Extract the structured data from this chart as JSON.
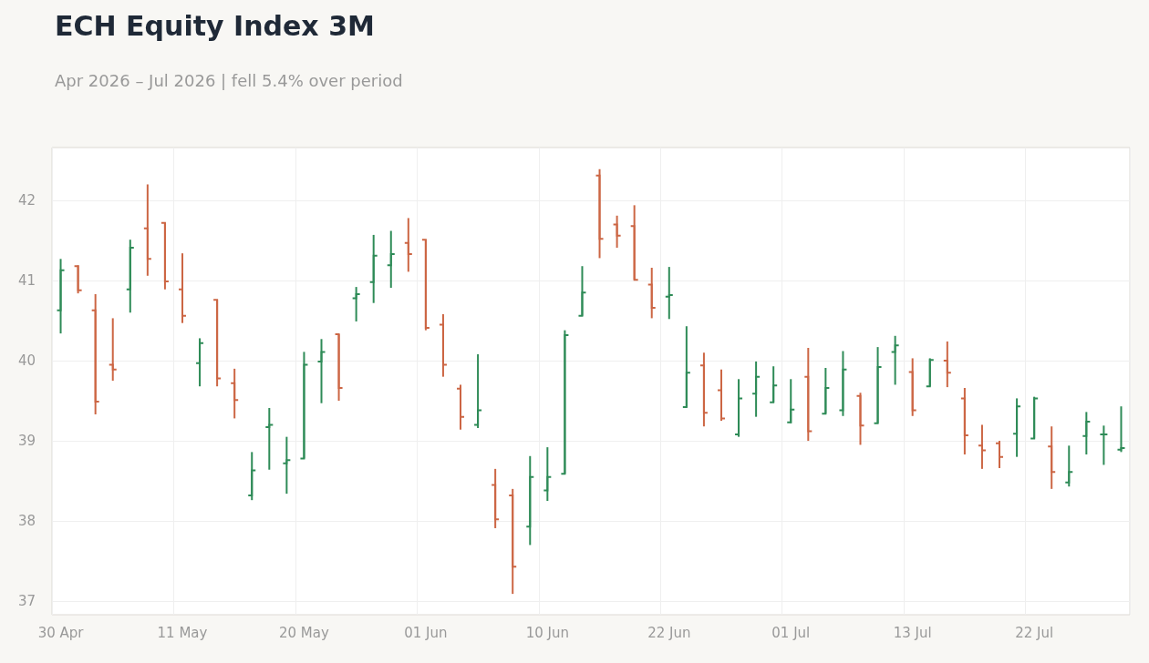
{
  "chart_data": {
    "type": "candlestick",
    "title": "ECH Equity Index 3M",
    "subtitle": "Apr 2026 – Jul 2026 | fell 5.4% over period",
    "categories": [
      "30 Apr",
      null,
      null,
      null,
      null,
      null,
      null,
      "11 May",
      null,
      null,
      null,
      null,
      null,
      null,
      "20 May",
      null,
      null,
      null,
      null,
      null,
      null,
      "01 Jun",
      null,
      null,
      null,
      null,
      null,
      null,
      "10 Jun",
      null,
      null,
      null,
      null,
      null,
      null,
      "22 Jun",
      null,
      null,
      null,
      null,
      null,
      null,
      "01 Jul",
      null,
      null,
      null,
      null,
      null,
      null,
      "13 Jul",
      null,
      null,
      null,
      null,
      null,
      null,
      "22 Jul",
      null,
      null,
      null,
      null,
      null
    ],
    "ohlc": [
      [
        40.63,
        41.27,
        40.34,
        41.13
      ],
      [
        41.18,
        41.19,
        40.84,
        40.88
      ],
      [
        40.63,
        40.83,
        39.33,
        39.49
      ],
      [
        39.95,
        40.53,
        39.75,
        39.89
      ],
      [
        40.89,
        41.51,
        40.6,
        41.41
      ],
      [
        41.65,
        42.2,
        41.06,
        41.27
      ],
      [
        41.72,
        41.72,
        40.89,
        40.99
      ],
      [
        40.89,
        41.34,
        40.47,
        40.56
      ],
      [
        39.97,
        40.28,
        39.68,
        40.22
      ],
      [
        40.76,
        40.76,
        39.68,
        39.78
      ],
      [
        39.72,
        39.9,
        39.28,
        39.51
      ],
      [
        38.32,
        38.86,
        38.26,
        38.63
      ],
      [
        39.17,
        39.41,
        38.64,
        39.2
      ],
      [
        38.72,
        39.05,
        38.34,
        38.76
      ],
      [
        38.78,
        40.11,
        38.78,
        39.95
      ],
      [
        39.99,
        40.27,
        39.47,
        40.11
      ],
      [
        40.33,
        40.33,
        39.5,
        39.66
      ],
      [
        40.78,
        40.92,
        40.49,
        40.83
      ],
      [
        40.98,
        41.57,
        40.72,
        41.31
      ],
      [
        41.19,
        41.62,
        40.91,
        41.33
      ],
      [
        41.47,
        41.78,
        41.11,
        41.33
      ],
      [
        41.51,
        41.51,
        40.38,
        40.41
      ],
      [
        40.45,
        40.58,
        39.8,
        39.95
      ],
      [
        39.65,
        39.7,
        39.14,
        39.3
      ],
      [
        39.2,
        40.08,
        39.16,
        39.38
      ],
      [
        38.45,
        38.65,
        37.91,
        38.02
      ],
      [
        38.32,
        38.4,
        37.09,
        37.43
      ],
      [
        37.93,
        38.81,
        37.7,
        38.55
      ],
      [
        38.38,
        38.92,
        38.25,
        38.55
      ],
      [
        38.59,
        40.38,
        38.59,
        40.32
      ],
      [
        40.56,
        41.18,
        40.56,
        40.85
      ],
      [
        42.31,
        42.39,
        41.28,
        41.52
      ],
      [
        41.7,
        41.81,
        41.41,
        41.56
      ],
      [
        41.68,
        41.94,
        41.01,
        41.01
      ],
      [
        40.95,
        41.16,
        40.53,
        40.66
      ],
      [
        40.8,
        41.17,
        40.52,
        40.82
      ],
      [
        39.42,
        40.43,
        39.42,
        39.85
      ],
      [
        39.94,
        40.1,
        39.18,
        39.35
      ],
      [
        39.63,
        39.89,
        39.25,
        39.28
      ],
      [
        39.08,
        39.77,
        39.05,
        39.53
      ],
      [
        39.59,
        39.99,
        39.3,
        39.8
      ],
      [
        39.48,
        39.93,
        39.48,
        39.69
      ],
      [
        39.23,
        39.77,
        39.22,
        39.39
      ],
      [
        39.8,
        40.16,
        39.0,
        39.12
      ],
      [
        39.34,
        39.91,
        39.34,
        39.66
      ],
      [
        39.38,
        40.12,
        39.31,
        39.89
      ],
      [
        39.56,
        39.6,
        38.95,
        39.19
      ],
      [
        39.22,
        40.17,
        39.22,
        39.92
      ],
      [
        40.11,
        40.31,
        39.7,
        40.19
      ],
      [
        39.86,
        40.03,
        39.31,
        39.38
      ],
      [
        39.68,
        40.03,
        39.68,
        40.01
      ],
      [
        40.0,
        40.24,
        39.67,
        39.85
      ],
      [
        39.53,
        39.66,
        38.83,
        39.07
      ],
      [
        38.94,
        39.2,
        38.65,
        38.88
      ],
      [
        38.97,
        39.0,
        38.66,
        38.8
      ],
      [
        39.09,
        39.53,
        38.8,
        39.43
      ],
      [
        39.03,
        39.55,
        39.03,
        39.53
      ],
      [
        38.93,
        39.18,
        38.4,
        38.61
      ],
      [
        38.48,
        38.94,
        38.43,
        38.61
      ],
      [
        39.06,
        39.36,
        38.83,
        39.24
      ],
      [
        39.08,
        39.19,
        38.7,
        39.08
      ],
      [
        38.89,
        39.43,
        38.86,
        38.91
      ]
    ],
    "colors": [
      "#2e8b57",
      "#cc6644",
      "#cc6644",
      "#cc6644",
      "#2e8b57",
      "#cc6644",
      "#cc6644",
      "#cc6644",
      "#2e8b57",
      "#cc6644",
      "#cc6644",
      "#2e8b57",
      "#2e8b57",
      "#2e8b57",
      "#2e8b57",
      "#2e8b57",
      "#cc6644",
      "#2e8b57",
      "#2e8b57",
      "#2e8b57",
      "#cc6644",
      "#cc6644",
      "#cc6644",
      "#cc6644",
      "#2e8b57",
      "#cc6644",
      "#cc6644",
      "#2e8b57",
      "#2e8b57",
      "#2e8b57",
      "#2e8b57",
      "#cc6644",
      "#cc6644",
      "#cc6644",
      "#cc6644",
      "#2e8b57",
      "#2e8b57",
      "#cc6644",
      "#cc6644",
      "#2e8b57",
      "#2e8b57",
      "#2e8b57",
      "#2e8b57",
      "#cc6644",
      "#2e8b57",
      "#2e8b57",
      "#cc6644",
      "#2e8b57",
      "#2e8b57",
      "#cc6644",
      "#2e8b57",
      "#cc6644",
      "#cc6644",
      "#cc6644",
      "#cc6644",
      "#2e8b57",
      "#2e8b57",
      "#cc6644",
      "#2e8b57",
      "#2e8b57",
      "#2e8b57",
      "#2e8b57"
    ],
    "ylim": [
      36.83,
      42.66
    ],
    "yticks": [
      37,
      38,
      39,
      40,
      41,
      42
    ],
    "grid": true
  }
}
